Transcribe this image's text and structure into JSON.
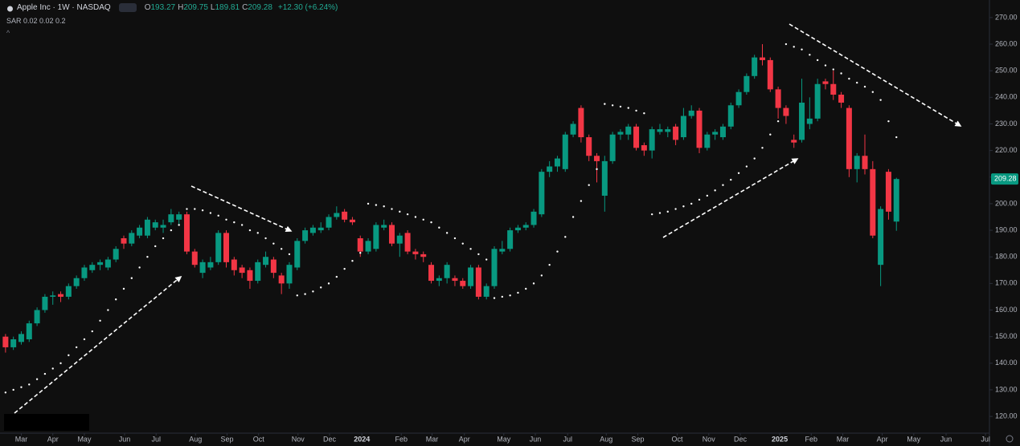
{
  "chart_data": {
    "type": "candlestick",
    "title": "Apple Inc · 1W · NASDAQ",
    "ohlc_labels": [
      "O",
      "H",
      "L",
      "C"
    ],
    "change": "+12.30 (+6.24%)",
    "indicator": "SAR 0.02 0.02 0.2",
    "up_color": "#089981",
    "down_color": "#f23645",
    "sar_color": "#ffffff",
    "x": [
      0,
      1,
      2,
      3,
      4,
      5,
      6,
      7,
      8,
      9,
      10,
      11,
      12,
      13,
      14,
      15,
      16,
      17,
      18,
      19,
      20,
      21,
      22,
      23,
      24,
      25,
      26,
      27,
      28,
      29,
      30,
      31,
      32,
      33,
      34,
      35,
      36,
      37,
      38,
      39,
      40,
      41,
      42,
      43,
      44,
      45,
      46,
      47,
      48,
      49,
      50,
      51,
      52,
      53,
      54,
      55,
      56,
      57,
      58,
      59,
      60,
      61,
      62,
      63,
      64,
      65,
      66,
      67,
      68,
      69,
      70,
      71,
      72,
      73,
      74,
      75,
      76,
      77,
      78,
      79,
      80,
      81,
      82,
      83,
      84,
      85,
      86,
      87,
      88,
      89,
      90,
      91,
      92,
      93,
      94,
      95,
      96,
      97,
      98,
      99,
      100,
      101,
      102,
      103,
      104,
      105,
      106,
      107,
      108,
      109,
      110,
      111,
      112,
      113
    ],
    "open": [
      150,
      146,
      148,
      149,
      155,
      160,
      165,
      166,
      165,
      169,
      172,
      175,
      177,
      176,
      179,
      187,
      185,
      188,
      188,
      191,
      191,
      193,
      194,
      196,
      182,
      174,
      176,
      178,
      189,
      179,
      176,
      175,
      171,
      177,
      179,
      173,
      170,
      176,
      186,
      189,
      190,
      191,
      195,
      197,
      194,
      187,
      182,
      183,
      191,
      192,
      185,
      189,
      182,
      181,
      177,
      171,
      172,
      172,
      171,
      169,
      176,
      165,
      169,
      182,
      183,
      190,
      191,
      192,
      196,
      212,
      214,
      213,
      226,
      236,
      225,
      218,
      203,
      216,
      226,
      226,
      229,
      222,
      220,
      227,
      227,
      229,
      225,
      233,
      235,
      221,
      226,
      225,
      229,
      237,
      242,
      248,
      255,
      254,
      243,
      236,
      224,
      224,
      230,
      232,
      246,
      245,
      241,
      236,
      213,
      218,
      213,
      177,
      212,
      193.27
    ],
    "high": [
      151,
      150,
      152,
      156,
      161,
      166,
      167,
      167,
      170,
      173,
      177,
      178,
      179,
      180,
      184,
      188,
      190,
      192,
      195,
      194,
      194,
      198,
      197,
      197,
      183,
      179,
      180,
      190,
      190,
      180,
      177,
      176,
      179,
      182,
      180,
      174,
      178,
      187,
      191,
      192,
      193,
      196,
      199,
      198,
      195,
      188,
      187,
      193,
      194,
      193,
      189,
      190,
      183,
      182,
      178,
      173,
      178,
      173,
      172,
      177,
      177,
      170,
      184,
      186,
      191,
      192,
      193,
      198,
      213,
      216,
      218,
      227,
      231,
      237,
      226,
      219,
      218,
      227,
      228,
      230,
      230,
      223,
      229,
      230,
      229,
      230,
      236,
      237,
      236,
      227,
      228,
      230,
      238,
      243,
      249,
      256,
      260,
      255,
      244,
      237,
      226,
      247,
      240,
      247,
      247,
      250,
      242,
      237,
      219,
      226,
      216,
      199,
      213,
      209.75
    ],
    "low": [
      144,
      145,
      147,
      148,
      154,
      159,
      162,
      163,
      164,
      168,
      171,
      174,
      175,
      175,
      178,
      183,
      184,
      187,
      187,
      190,
      189,
      192,
      192,
      181,
      176,
      172,
      175,
      177,
      176,
      173,
      172,
      168,
      170,
      176,
      172,
      166,
      168,
      175,
      185,
      188,
      189,
      190,
      194,
      193,
      192,
      180,
      181,
      182,
      190,
      184,
      180,
      181,
      179,
      178,
      170,
      169,
      170,
      169,
      168,
      168,
      164,
      164,
      168,
      181,
      182,
      189,
      190,
      191,
      195,
      210,
      212,
      212,
      225,
      223,
      216,
      208,
      197,
      215,
      224,
      224,
      220,
      218,
      217,
      226,
      225,
      222,
      224,
      232,
      219,
      220,
      224,
      224,
      228,
      236,
      241,
      247,
      252,
      242,
      232,
      230,
      221,
      223,
      228,
      231,
      243,
      239,
      236,
      210,
      208,
      211,
      187,
      169,
      194,
      189.81
    ],
    "close": [
      146,
      149,
      151,
      155,
      160,
      165,
      165.5,
      165,
      169,
      172,
      176,
      177,
      178,
      179,
      183,
      185,
      189,
      191,
      194,
      193,
      192,
      196,
      196,
      182,
      177,
      178,
      178,
      189,
      178,
      175,
      174,
      171,
      178,
      180,
      174,
      170,
      177,
      186,
      190,
      191,
      191,
      195,
      196.5,
      194,
      193,
      182,
      186,
      192,
      192,
      185,
      188,
      182,
      181,
      180,
      171,
      172,
      177,
      171,
      169,
      176,
      165,
      169,
      183,
      183,
      190,
      191,
      192,
      197,
      212,
      214,
      217,
      226,
      230,
      225,
      218,
      216,
      216,
      226,
      227,
      229,
      221,
      220,
      228,
      228,
      228,
      224,
      233,
      235,
      221,
      226,
      227,
      229,
      237,
      242,
      248,
      255,
      254,
      243,
      236,
      233,
      223,
      238,
      232,
      245,
      245,
      241,
      238,
      213,
      218,
      213,
      188,
      198,
      197,
      209.28
    ],
    "sar": [
      129,
      130,
      131,
      132,
      134,
      136,
      138,
      140,
      143,
      146,
      149,
      152,
      156,
      160,
      164,
      168,
      172,
      176,
      180,
      184,
      187,
      190,
      192,
      198,
      198,
      197.5,
      196.5,
      195.5,
      194,
      193,
      192,
      190,
      189,
      187,
      185,
      183,
      181,
      165.5,
      166,
      167,
      168.5,
      170,
      172.5,
      175.5,
      178.5,
      181.5,
      200,
      199.5,
      199,
      198,
      197,
      196,
      195,
      194,
      193,
      191,
      189,
      187,
      185,
      183,
      181,
      179,
      164.5,
      165,
      165.5,
      166.5,
      168,
      170,
      173,
      177,
      182,
      187.5,
      195,
      201,
      207,
      213,
      237.5,
      237,
      236.5,
      236,
      235,
      234,
      196,
      196.5,
      197,
      198,
      199,
      200,
      201.5,
      203,
      205,
      207,
      209,
      211.5,
      214,
      217,
      221,
      226,
      231,
      260,
      259,
      258,
      256,
      254,
      252,
      250.5,
      249,
      247,
      245.5,
      244,
      242,
      239,
      231,
      225
    ],
    "xlim": [
      -0.7,
      124.7
    ],
    "xticks": [
      {
        "value": 2.0,
        "label": "Mar"
      },
      {
        "value": 6.0,
        "label": "Apr"
      },
      {
        "value": 10.0,
        "label": "May"
      },
      {
        "value": 15.1,
        "label": "Jun"
      },
      {
        "value": 19.1,
        "label": "Jul"
      },
      {
        "value": 24.1,
        "label": "Aug"
      },
      {
        "value": 28.1,
        "label": "Sep"
      },
      {
        "value": 32.1,
        "label": "Oct"
      },
      {
        "value": 37.1,
        "label": "Nov"
      },
      {
        "value": 41.1,
        "label": "Dec"
      },
      {
        "value": 45.2,
        "label": "2024"
      },
      {
        "value": 50.2,
        "label": "Feb"
      },
      {
        "value": 54.1,
        "label": "Mar"
      },
      {
        "value": 58.2,
        "label": "Apr"
      },
      {
        "value": 63.2,
        "label": "May"
      },
      {
        "value": 67.2,
        "label": "Jun"
      },
      {
        "value": 71.3,
        "label": "Jul"
      },
      {
        "value": 76.2,
        "label": "Aug"
      },
      {
        "value": 80.2,
        "label": "Sep"
      },
      {
        "value": 85.2,
        "label": "Oct"
      },
      {
        "value": 89.2,
        "label": "Nov"
      },
      {
        "value": 93.2,
        "label": "Dec"
      },
      {
        "value": 98.2,
        "label": "2025"
      },
      {
        "value": 102.2,
        "label": "Feb"
      },
      {
        "value": 106.2,
        "label": "Mar"
      },
      {
        "value": 111.2,
        "label": "Apr"
      },
      {
        "value": 115.2,
        "label": "May"
      },
      {
        "value": 119.3,
        "label": "Jun"
      },
      {
        "value": 124.3,
        "label": "Jul"
      }
    ],
    "ylim": [
      113.7,
      276.6
    ],
    "yticks": [
      {
        "value": 120,
        "label": "120.00"
      },
      {
        "value": 130,
        "label": "130.00"
      },
      {
        "value": 140,
        "label": "140.00"
      },
      {
        "value": 150,
        "label": "150.00"
      },
      {
        "value": 160,
        "label": "160.00"
      },
      {
        "value": 170,
        "label": "170.00"
      },
      {
        "value": 180,
        "label": "180.00"
      },
      {
        "value": 190,
        "label": "190.00"
      },
      {
        "value": 200,
        "label": "200.00"
      },
      {
        "value": 210,
        "label": "210.00"
      },
      {
        "value": 220,
        "label": "220.00"
      },
      {
        "value": 230,
        "label": "230.00"
      },
      {
        "value": 240,
        "label": "240.00"
      },
      {
        "value": 250,
        "label": "250.00"
      },
      {
        "value": 260,
        "label": "260.00"
      },
      {
        "value": 270,
        "label": "270.00"
      }
    ],
    "grid": false
  }
}
